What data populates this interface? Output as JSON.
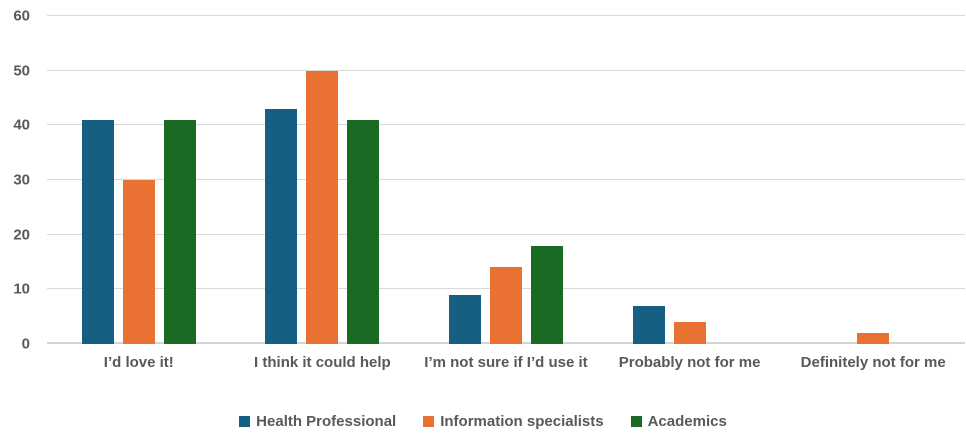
{
  "chart_data": {
    "type": "bar",
    "title": "",
    "xlabel": "",
    "ylabel": "",
    "categories": [
      "I’d love it!",
      "I think it could help",
      "I’m not sure if I’d use it",
      "Probably not for me",
      "Definitely not for me"
    ],
    "series": [
      {
        "name": "Health Professional",
        "color": "#156082",
        "values": [
          41,
          43,
          9,
          7,
          0
        ]
      },
      {
        "name": "Information specialists",
        "color": "#E97132",
        "values": [
          30,
          50,
          14,
          4,
          2
        ]
      },
      {
        "name": "Academics",
        "color": "#196B24",
        "values": [
          41,
          41,
          18,
          0,
          0
        ]
      }
    ],
    "ylim": [
      0,
      60
    ],
    "yticks": [
      0,
      10,
      20,
      30,
      40,
      50,
      60
    ],
    "grid": true,
    "legend_position": "bottom"
  },
  "colors": {
    "gridline": "#D9D9D9",
    "axis_line": "#D5D5D5",
    "tick_text": "#595959",
    "background": "#FFFFFF"
  }
}
